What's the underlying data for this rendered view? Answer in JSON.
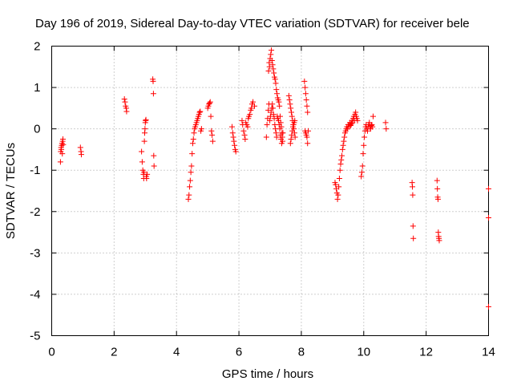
{
  "chart_data": {
    "type": "scatter",
    "title": "Day 196 of 2019, Sidereal Day-to-day VTEC variation (SDTVAR) for receiver bele",
    "xlabel": "GPS time / hours",
    "ylabel": "SDTVAR / TECUs",
    "xlim": [
      0,
      14
    ],
    "ylim": [
      -5,
      2
    ],
    "xticks": [
      0,
      2,
      4,
      6,
      8,
      10,
      12,
      14
    ],
    "yticks": [
      -5,
      -4,
      -3,
      -2,
      -1,
      0,
      1,
      2
    ],
    "xtick_labels": [
      "0",
      "2",
      "4",
      "6",
      "8",
      "10",
      "12",
      "14"
    ],
    "ytick_labels": [
      "-5",
      "-4",
      "-3",
      "-2",
      "-1",
      "0",
      "1",
      "2"
    ],
    "grid": true,
    "marker": "+",
    "series": [
      {
        "name": "SDTVAR",
        "color": "#ff0000",
        "x": [
          0.28,
          0.29,
          0.3,
          0.31,
          0.32,
          0.33,
          0.34,
          0.35,
          0.36,
          0.37,
          0.92,
          0.94,
          0.95,
          2.33,
          2.35,
          2.37,
          2.39,
          2.4,
          2.88,
          2.9,
          2.92,
          2.94,
          2.95,
          2.96,
          2.97,
          2.98,
          2.99,
          3.0,
          3.01,
          3.02,
          3.03,
          3.04,
          3.06,
          3.24,
          3.25,
          3.26,
          3.27,
          3.28,
          4.38,
          4.4,
          4.42,
          4.44,
          4.46,
          4.48,
          4.5,
          4.52,
          4.54,
          4.56,
          4.58,
          4.6,
          4.62,
          4.64,
          4.66,
          4.68,
          4.7,
          4.72,
          4.74,
          4.76,
          4.78,
          4.8,
          5.0,
          5.02,
          5.04,
          5.06,
          5.08,
          5.1,
          5.12,
          5.14,
          5.16,
          5.78,
          5.8,
          5.82,
          5.84,
          5.86,
          5.88,
          5.9,
          6.1,
          6.12,
          6.15,
          6.18,
          6.2,
          6.22,
          6.25,
          6.28,
          6.3,
          6.32,
          6.35,
          6.38,
          6.4,
          6.42,
          6.45,
          6.5,
          6.88,
          6.9,
          6.92,
          6.94,
          6.96,
          6.98,
          7.0,
          7.02,
          7.04,
          7.06,
          7.08,
          7.1,
          7.12,
          7.14,
          7.16,
          7.18,
          7.2,
          7.22,
          7.24,
          7.26,
          7.28,
          7.3,
          7.32,
          7.34,
          7.36,
          7.38,
          7.4,
          6.95,
          6.97,
          6.99,
          7.01,
          7.03,
          7.05,
          7.07,
          7.09,
          7.11,
          7.13,
          7.15,
          7.17,
          7.19,
          7.21,
          7.23,
          7.25,
          7.27,
          7.29,
          7.31,
          7.33,
          7.35,
          7.37,
          7.39,
          7.41,
          7.6,
          7.62,
          7.64,
          7.66,
          7.68,
          7.7,
          7.72,
          7.74,
          7.76,
          7.78,
          7.8,
          7.65,
          7.67,
          7.69,
          7.71,
          7.73,
          7.75,
          7.77,
          7.79,
          8.1,
          8.12,
          8.14,
          8.16,
          8.18,
          8.2,
          8.12,
          8.14,
          8.16,
          8.18,
          8.2,
          8.22,
          9.08,
          9.1,
          9.12,
          9.14,
          9.16,
          9.18,
          9.2,
          9.22,
          9.24,
          9.26,
          9.28,
          9.3,
          9.32,
          9.34,
          9.36,
          9.38,
          9.4,
          9.42,
          9.44,
          9.46,
          9.48,
          9.5,
          9.52,
          9.54,
          9.56,
          9.58,
          9.6,
          9.62,
          9.64,
          9.66,
          9.68,
          9.7,
          9.72,
          9.74,
          9.76,
          9.78,
          9.8,
          9.92,
          9.94,
          9.96,
          9.98,
          10.0,
          10.02,
          10.04,
          10.06,
          10.08,
          10.1,
          10.12,
          10.14,
          10.16,
          10.18,
          10.2,
          10.22,
          10.24,
          10.26,
          10.28,
          10.3,
          10.7,
          10.72,
          11.55,
          11.56,
          11.57,
          11.58,
          11.59,
          12.35,
          12.36,
          12.37,
          12.38,
          12.39,
          12.4,
          12.41,
          12.42,
          14.0,
          14.0,
          14.0
        ],
        "y": [
          -0.8,
          -0.55,
          -0.45,
          -0.5,
          -0.4,
          -0.35,
          -0.6,
          -0.3,
          -0.25,
          -0.38,
          -0.45,
          -0.55,
          -0.62,
          0.72,
          0.65,
          0.55,
          0.5,
          0.42,
          -0.55,
          -0.8,
          -1.0,
          -1.1,
          -1.2,
          -1.05,
          -0.3,
          -0.1,
          0.0,
          0.15,
          0.2,
          0.22,
          -1.15,
          -1.2,
          -1.1,
          1.2,
          1.15,
          0.85,
          -0.65,
          -0.9,
          -1.7,
          -1.6,
          -1.4,
          -1.25,
          -1.05,
          -0.9,
          -0.6,
          -0.35,
          -0.25,
          -0.1,
          0.0,
          0.05,
          0.1,
          0.15,
          0.2,
          0.25,
          0.3,
          0.35,
          0.4,
          0.42,
          -0.05,
          0.0,
          0.5,
          0.55,
          0.6,
          0.62,
          0.65,
          0.3,
          -0.05,
          -0.15,
          -0.3,
          0.05,
          -0.1,
          -0.2,
          -0.3,
          -0.4,
          -0.5,
          -0.55,
          0.2,
          0.1,
          -0.05,
          -0.15,
          -0.25,
          0.15,
          0.1,
          0.05,
          0.25,
          0.3,
          0.35,
          0.45,
          0.5,
          0.6,
          0.65,
          0.55,
          -0.2,
          0.1,
          0.25,
          0.45,
          0.6,
          1.5,
          1.7,
          1.8,
          1.9,
          1.65,
          1.55,
          1.45,
          1.35,
          1.25,
          1.2,
          1.1,
          0.95,
          0.85,
          0.75,
          0.7,
          0.65,
          0.55,
          0.3,
          0.15,
          0.05,
          -0.1,
          -0.3,
          1.4,
          1.6,
          0.2,
          0.3,
          0.4,
          0.5,
          0.6,
          0.5,
          0.35,
          0.25,
          0.1,
          0.0,
          -0.1,
          -0.2,
          0.3,
          0.25,
          0.2,
          0.1,
          0.0,
          -0.15,
          -0.25,
          -0.35,
          -0.2,
          -0.1,
          0.8,
          0.7,
          0.6,
          0.5,
          0.4,
          0.3,
          0.2,
          0.1,
          0.0,
          -0.1,
          -0.2,
          -0.35,
          -0.25,
          -0.15,
          -0.05,
          0.05,
          0.1,
          0.15,
          0.2,
          1.15,
          1.0,
          0.85,
          0.7,
          0.55,
          0.4,
          -0.05,
          -0.1,
          -0.15,
          -0.2,
          -0.35,
          -0.05,
          -1.3,
          -1.35,
          -1.45,
          -1.55,
          -1.7,
          -1.6,
          -1.4,
          -1.2,
          -1.0,
          -0.85,
          -0.75,
          -0.65,
          -0.5,
          -0.4,
          -0.3,
          -0.2,
          -0.1,
          -0.05,
          0.0,
          0.05,
          0.0,
          0.1,
          0.05,
          0.1,
          0.15,
          0.08,
          0.12,
          0.2,
          0.15,
          0.25,
          0.3,
          0.2,
          0.35,
          0.4,
          0.3,
          0.25,
          0.2,
          -1.15,
          -1.05,
          -0.9,
          -0.6,
          -0.4,
          -0.2,
          -0.05,
          0.05,
          0.1,
          0.0,
          -0.05,
          0.05,
          0.1,
          0.15,
          0.05,
          0.0,
          0.08,
          0.1,
          0.05,
          0.3,
          0.15,
          0.0,
          -1.3,
          -1.4,
          -1.6,
          -2.35,
          -2.65,
          -1.25,
          -1.45,
          -1.65,
          -1.7,
          -2.5,
          -2.6,
          -2.65,
          -2.7,
          -1.45,
          -2.15,
          -4.3
        ]
      }
    ]
  }
}
